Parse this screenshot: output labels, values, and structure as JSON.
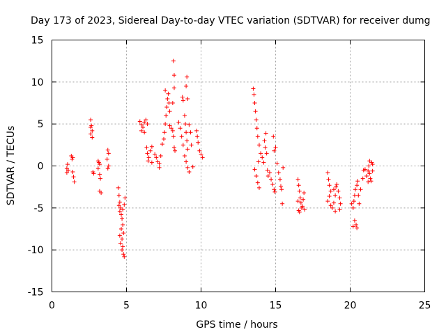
{
  "chart_data": {
    "type": "scatter",
    "title": "Day 173 of 2023, Sidereal Day-to-day VTEC variation (SDTVAR) for receiver dumg",
    "xlabel": "GPS time / hours",
    "ylabel": "SDTVAR / TECUs",
    "xlim": [
      0,
      25
    ],
    "ylim": [
      -15,
      15
    ],
    "xticks": [
      "0",
      "5",
      "10",
      "15",
      "20",
      "25"
    ],
    "yticks": [
      "-15",
      "-10",
      "-5",
      "0",
      "5",
      "10",
      "15"
    ],
    "marker": "+",
    "color": "#ff0000",
    "grid": true,
    "series": [
      {
        "name": "SDTVAR",
        "points": [
          [
            1.0,
            -0.8
          ],
          [
            1.0,
            -0.3
          ],
          [
            1.05,
            0.2
          ],
          [
            1.1,
            -0.5
          ],
          [
            1.3,
            1.2
          ],
          [
            1.35,
            0.8
          ],
          [
            1.4,
            1.0
          ],
          [
            1.4,
            -0.7
          ],
          [
            1.45,
            -1.3
          ],
          [
            1.5,
            -1.9
          ],
          [
            2.6,
            5.5
          ],
          [
            2.65,
            4.8
          ],
          [
            2.6,
            4.6
          ],
          [
            2.7,
            4.2
          ],
          [
            2.6,
            3.8
          ],
          [
            2.7,
            3.4
          ],
          [
            2.75,
            -0.7
          ],
          [
            2.8,
            -0.9
          ],
          [
            3.1,
            0.6
          ],
          [
            3.15,
            0.4
          ],
          [
            3.2,
            0.2
          ],
          [
            3.1,
            -0.3
          ],
          [
            3.2,
            -1.0
          ],
          [
            3.25,
            -1.5
          ],
          [
            3.2,
            -3.0
          ],
          [
            3.3,
            -3.2
          ],
          [
            3.75,
            1.9
          ],
          [
            3.8,
            1.5
          ],
          [
            3.7,
            0.8
          ],
          [
            3.8,
            0.0
          ],
          [
            3.75,
            -0.3
          ],
          [
            4.45,
            -2.6
          ],
          [
            4.5,
            -3.5
          ],
          [
            4.55,
            -4.3
          ],
          [
            4.5,
            -4.7
          ],
          [
            4.6,
            -5.0
          ],
          [
            4.55,
            -5.4
          ],
          [
            4.65,
            -5.8
          ],
          [
            4.7,
            -6.3
          ],
          [
            4.75,
            -7.0
          ],
          [
            4.65,
            -7.5
          ],
          [
            4.8,
            -8.0
          ],
          [
            4.55,
            -8.3
          ],
          [
            4.7,
            -8.7
          ],
          [
            4.6,
            -9.2
          ],
          [
            4.75,
            -9.6
          ],
          [
            4.7,
            -10.0
          ],
          [
            4.8,
            -10.5
          ],
          [
            4.85,
            -10.8
          ],
          [
            4.75,
            -5.2
          ],
          [
            4.85,
            -4.6
          ],
          [
            4.9,
            -3.8
          ],
          [
            5.9,
            5.3
          ],
          [
            6.0,
            4.9
          ],
          [
            6.1,
            4.6
          ],
          [
            6.2,
            5.2
          ],
          [
            6.3,
            5.5
          ],
          [
            6.0,
            4.2
          ],
          [
            6.2,
            4.0
          ],
          [
            6.4,
            5.0
          ],
          [
            6.35,
            2.2
          ],
          [
            6.4,
            1.5
          ],
          [
            6.5,
            1.0
          ],
          [
            6.45,
            0.6
          ],
          [
            6.6,
            1.8
          ],
          [
            6.7,
            2.3
          ],
          [
            6.7,
            0.4
          ],
          [
            6.9,
            1.4
          ],
          [
            7.0,
            1.0
          ],
          [
            7.1,
            0.5
          ],
          [
            7.2,
            0.3
          ],
          [
            7.3,
            1.2
          ],
          [
            7.4,
            2.6
          ],
          [
            7.2,
            -0.2
          ],
          [
            7.5,
            3.2
          ],
          [
            7.55,
            4.0
          ],
          [
            7.6,
            5.0
          ],
          [
            7.65,
            6.0
          ],
          [
            7.7,
            7.0
          ],
          [
            7.75,
            8.0
          ],
          [
            7.6,
            9.0
          ],
          [
            7.8,
            8.6
          ],
          [
            7.85,
            7.5
          ],
          [
            7.9,
            6.5
          ],
          [
            7.9,
            4.8
          ],
          [
            8.0,
            4.5
          ],
          [
            8.1,
            4.2
          ],
          [
            8.15,
            3.5
          ],
          [
            8.2,
            2.2
          ],
          [
            8.25,
            1.8
          ],
          [
            8.1,
            7.5
          ],
          [
            8.2,
            9.3
          ],
          [
            8.2,
            10.8
          ],
          [
            8.15,
            12.5
          ],
          [
            8.5,
            5.2
          ],
          [
            8.6,
            4.5
          ],
          [
            8.7,
            3.5
          ],
          [
            8.8,
            2.5
          ],
          [
            8.75,
            8.2
          ],
          [
            8.8,
            7.8
          ],
          [
            8.9,
            6.0
          ],
          [
            8.95,
            5.0
          ],
          [
            9.0,
            4.0
          ],
          [
            9.05,
            3.0
          ],
          [
            9.1,
            2.0
          ],
          [
            9.0,
            0.5
          ],
          [
            9.1,
            -0.2
          ],
          [
            9.2,
            -0.7
          ],
          [
            8.9,
            1.2
          ],
          [
            9.05,
            10.6
          ],
          [
            9.0,
            9.5
          ],
          [
            9.1,
            8.0
          ],
          [
            9.2,
            4.9
          ],
          [
            9.3,
            4.0
          ],
          [
            9.35,
            2.5
          ],
          [
            9.45,
            -0.1
          ],
          [
            9.7,
            4.2
          ],
          [
            9.75,
            3.5
          ],
          [
            9.8,
            2.8
          ],
          [
            9.9,
            1.8
          ],
          [
            10.0,
            1.4
          ],
          [
            10.1,
            1.0
          ],
          [
            13.5,
            9.2
          ],
          [
            13.55,
            8.5
          ],
          [
            13.6,
            7.5
          ],
          [
            13.65,
            6.5
          ],
          [
            13.7,
            5.5
          ],
          [
            13.75,
            4.5
          ],
          [
            13.8,
            3.5
          ],
          [
            13.6,
            -0.4
          ],
          [
            13.7,
            -1.2
          ],
          [
            13.8,
            -2.0
          ],
          [
            13.9,
            -2.6
          ],
          [
            13.85,
            0.5
          ],
          [
            13.9,
            2.5
          ],
          [
            14.0,
            1.5
          ],
          [
            14.1,
            1.0
          ],
          [
            14.2,
            0.4
          ],
          [
            14.25,
            3.0
          ],
          [
            14.3,
            2.2
          ],
          [
            14.35,
            3.9
          ],
          [
            14.4,
            1.5
          ],
          [
            14.45,
            -0.5
          ],
          [
            14.5,
            -1.2
          ],
          [
            14.6,
            -0.8
          ],
          [
            14.7,
            -1.6
          ],
          [
            14.8,
            -2.2
          ],
          [
            14.9,
            -2.8
          ],
          [
            14.95,
            -3.1
          ],
          [
            14.85,
            3.5
          ],
          [
            14.9,
            1.8
          ],
          [
            15.0,
            2.2
          ],
          [
            15.1,
            0.3
          ],
          [
            15.2,
            -0.8
          ],
          [
            15.3,
            -1.6
          ],
          [
            15.35,
            -2.4
          ],
          [
            15.4,
            -2.8
          ],
          [
            15.45,
            -4.5
          ],
          [
            15.5,
            -0.2
          ],
          [
            16.5,
            -1.6
          ],
          [
            16.55,
            -2.3
          ],
          [
            16.6,
            -3.0
          ],
          [
            16.65,
            -3.8
          ],
          [
            16.7,
            -4.4
          ],
          [
            16.75,
            -5.0
          ],
          [
            16.6,
            -5.5
          ],
          [
            16.8,
            -4.8
          ],
          [
            16.85,
            -4.0
          ],
          [
            16.9,
            -3.2
          ],
          [
            16.95,
            -5.2
          ],
          [
            16.5,
            -4.2
          ],
          [
            16.55,
            -5.3
          ],
          [
            18.5,
            -0.8
          ],
          [
            18.55,
            -1.6
          ],
          [
            18.6,
            -2.3
          ],
          [
            18.7,
            -3.0
          ],
          [
            18.6,
            -3.6
          ],
          [
            18.5,
            -4.2
          ],
          [
            18.7,
            -4.7
          ],
          [
            18.8,
            -5.0
          ],
          [
            18.9,
            -4.4
          ],
          [
            19.0,
            -3.5
          ],
          [
            19.05,
            -2.5
          ],
          [
            19.1,
            -2.2
          ],
          [
            19.2,
            -3.0
          ],
          [
            19.3,
            -3.8
          ],
          [
            19.35,
            -4.5
          ],
          [
            19.3,
            -5.2
          ],
          [
            19.0,
            -5.4
          ],
          [
            18.9,
            -2.8
          ],
          [
            20.1,
            -4.5
          ],
          [
            20.2,
            -5.0
          ],
          [
            20.25,
            -4.2
          ],
          [
            20.3,
            -3.5
          ],
          [
            20.35,
            -2.8
          ],
          [
            20.45,
            -2.3
          ],
          [
            20.5,
            -1.8
          ],
          [
            20.3,
            -6.5
          ],
          [
            20.4,
            -7.0
          ],
          [
            20.45,
            -7.4
          ],
          [
            20.2,
            -7.2
          ],
          [
            20.55,
            -3.5
          ],
          [
            20.6,
            -4.5
          ],
          [
            20.7,
            -2.8
          ],
          [
            20.85,
            -1.5
          ],
          [
            20.9,
            -0.5
          ],
          [
            21.0,
            -0.4
          ],
          [
            21.1,
            -1.2
          ],
          [
            21.2,
            -0.6
          ],
          [
            21.25,
            0.0
          ],
          [
            21.3,
            -0.9
          ],
          [
            21.35,
            -1.5
          ],
          [
            21.4,
            -1.8
          ],
          [
            21.45,
            0.4
          ],
          [
            21.5,
            0.2
          ],
          [
            21.5,
            -0.6
          ],
          [
            21.3,
            0.6
          ],
          [
            21.2,
            -1.9
          ]
        ]
      }
    ]
  }
}
